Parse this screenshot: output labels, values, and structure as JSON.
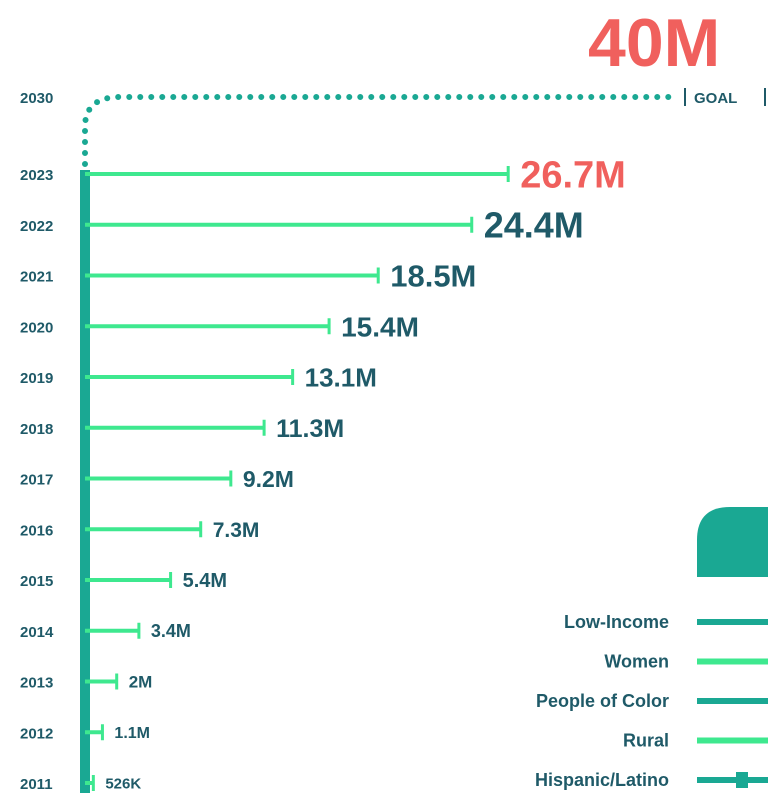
{
  "chart_data": {
    "type": "bar",
    "orientation": "horizontal",
    "categories": [
      "2011",
      "2012",
      "2013",
      "2014",
      "2015",
      "2016",
      "2017",
      "2018",
      "2019",
      "2020",
      "2021",
      "2022",
      "2023"
    ],
    "values": [
      0.526,
      1.1,
      2,
      3.4,
      5.4,
      7.3,
      9.2,
      11.3,
      13.1,
      15.4,
      18.5,
      24.4,
      26.7
    ],
    "value_labels": [
      "526K",
      "1.1M",
      "2M",
      "3.4M",
      "5.4M",
      "7.3M",
      "9.2M",
      "11.3M",
      "13.1M",
      "15.4M",
      "18.5M",
      "24.4M",
      "26.7M"
    ],
    "highlight_category": "2023",
    "goal": {
      "year": "2030",
      "value": 40,
      "label": "40M",
      "word": "GOAL"
    },
    "legend": {
      "placement": "bottom-right",
      "items": [
        {
          "label": "Low-Income",
          "color": "#1aa893"
        },
        {
          "label": "Women",
          "color": "#3ee88f"
        },
        {
          "label": "People of Color",
          "color": "#1aa893"
        },
        {
          "label": "Rural",
          "color": "#3ee88f"
        },
        {
          "label": "Hispanic/Latino",
          "color": "#1aa893"
        }
      ]
    },
    "colors": {
      "bars": "#3ee88f",
      "axis": "#1aa893",
      "labels": "#1f5a68",
      "highlight": "#f0605d",
      "year_text": "#1f5a68"
    }
  }
}
